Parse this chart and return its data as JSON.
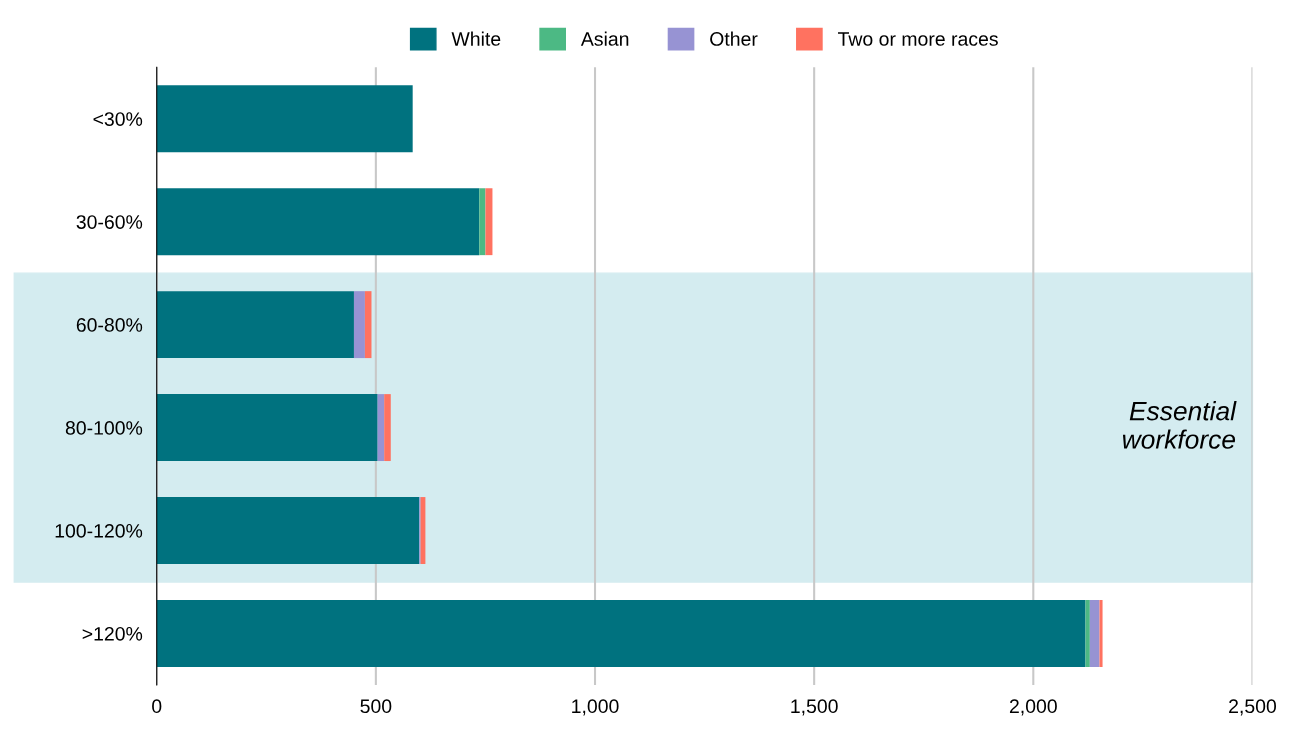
{
  "chart_data": {
    "type": "bar",
    "orientation": "horizontal",
    "stacked": true,
    "categories": [
      "<30%",
      "30-60%",
      "60-80%",
      "80-100%",
      "100-120%",
      ">120%"
    ],
    "series": [
      {
        "name": "White",
        "color": "#00727f",
        "values": [
          584,
          736,
          450,
          504,
          599,
          2119
        ]
      },
      {
        "name": "Asian",
        "color": "#4cb984",
        "values": [
          0,
          14,
          0,
          0,
          0,
          10
        ]
      },
      {
        "name": "Other",
        "color": "#9793d3",
        "values": [
          0,
          0,
          25,
          15,
          3,
          22
        ]
      },
      {
        "name": "Two or more races",
        "color": "#ff7260",
        "values": [
          0,
          16,
          15,
          15,
          11,
          7
        ]
      }
    ],
    "xlim": [
      0,
      2500
    ],
    "xticks": [
      0,
      {
        "value": 500,
        "label": "500"
      },
      {
        "value": 1000,
        "label": "1,000"
      },
      {
        "value": 1500,
        "label": "1,500"
      },
      {
        "value": 2000,
        "label": "2,000"
      },
      {
        "value": 2500,
        "label": "2,500"
      }
    ],
    "bands": [
      {
        "axis": "y",
        "from": "60-80%",
        "to": "100-120%",
        "label": "Essential\nworkforce",
        "color": "#d4ecf0"
      }
    ],
    "grid": "x",
    "legend": "top"
  }
}
